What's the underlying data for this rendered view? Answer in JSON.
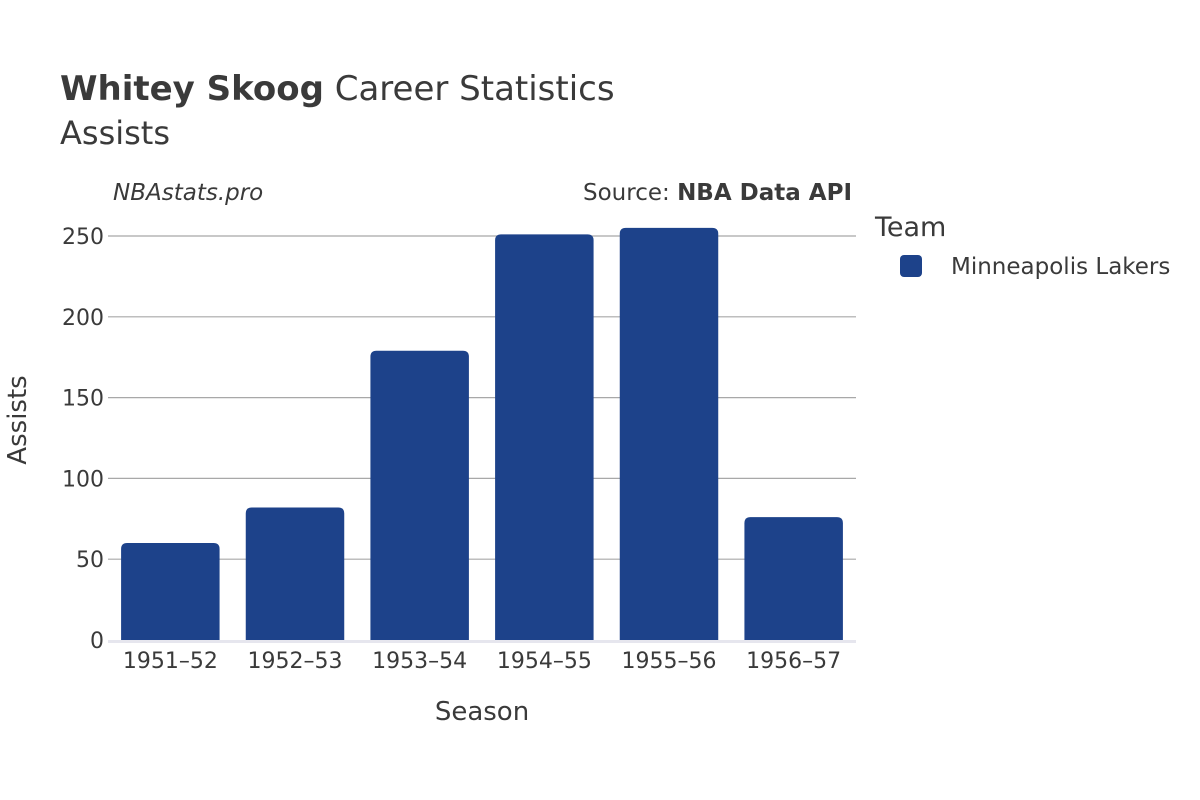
{
  "header": {
    "player_name": "Whitey Skoog",
    "title_rest": " Career Statistics",
    "subtitle": "Assists"
  },
  "watermark": "NBAstats.pro",
  "source": {
    "prefix": "Source: ",
    "name": "NBA Data API"
  },
  "legend": {
    "title": "Team",
    "items": [
      {
        "label": "Minneapolis Lakers",
        "color": "#1d428a"
      }
    ]
  },
  "chart_data": {
    "type": "bar",
    "title": "Whitey Skoog Career Statistics",
    "subtitle": "Assists",
    "xlabel": "Season",
    "ylabel": "Assists",
    "categories": [
      "1951–52",
      "1952–53",
      "1953–54",
      "1954–55",
      "1955–56",
      "1956–57"
    ],
    "series": [
      {
        "name": "Minneapolis Lakers",
        "color": "#1d428a",
        "values": [
          60,
          82,
          179,
          251,
          255,
          76
        ]
      }
    ],
    "ylim": [
      0,
      263
    ],
    "yticks": [
      0,
      50,
      100,
      150,
      200,
      250
    ],
    "grid": true,
    "legend_position": "right"
  }
}
